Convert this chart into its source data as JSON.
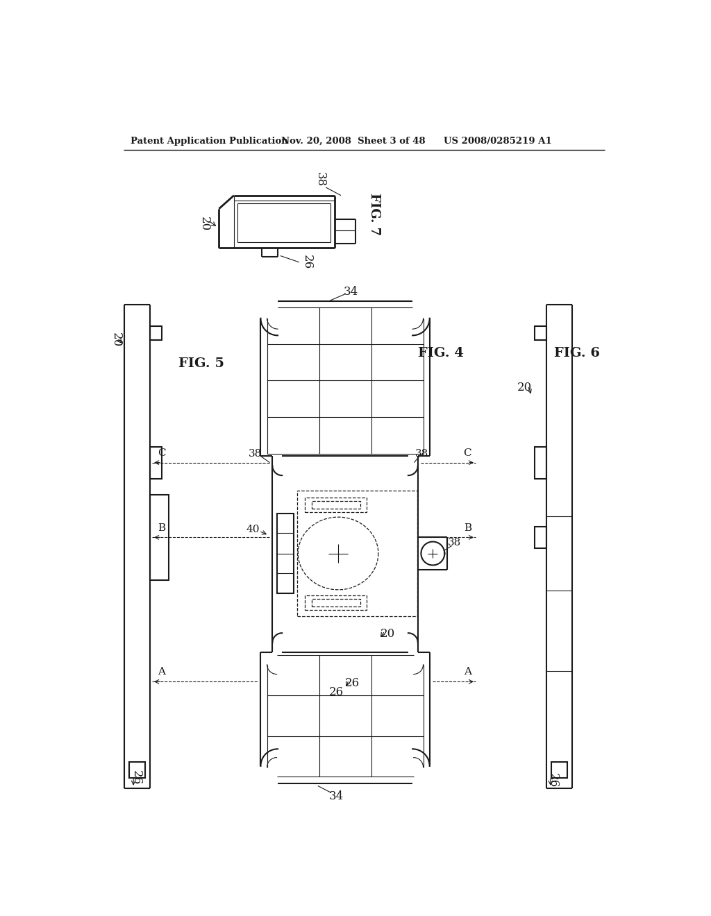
{
  "background_color": "#ffffff",
  "header_text": "Patent Application Publication",
  "header_date": "Nov. 20, 2008  Sheet 3 of 48",
  "header_patent": "US 2008/0285219 A1",
  "fig7_label": "FIG. 7",
  "fig4_label": "FIG. 4",
  "fig5_label": "FIG. 5",
  "fig6_label": "FIG. 6",
  "line_color": "#1a1a1a",
  "lw_thick": 2.0,
  "lw_med": 1.5,
  "lw_thin": 0.8,
  "lw_dash": 0.9
}
